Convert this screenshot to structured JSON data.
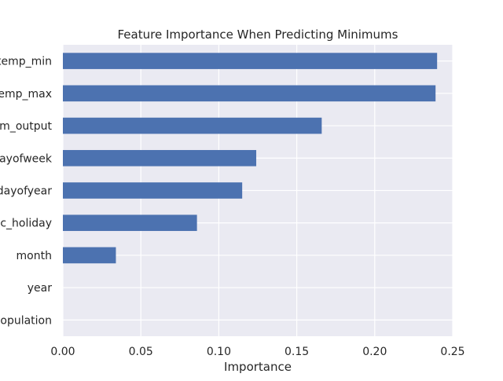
{
  "chart_data": {
    "type": "bar",
    "orientation": "horizontal",
    "title": "Feature Importance When Predicting Minimums",
    "xlabel": "Importance",
    "ylabel": "",
    "xlim": [
      0,
      0.25
    ],
    "xticks": [
      "0.00",
      "0.05",
      "0.10",
      "0.15",
      "0.20",
      "0.25"
    ],
    "categories": [
      "temp_min",
      "temp_max",
      "um_output",
      "dayofweek",
      "dayofyear",
      "ic_holiday",
      "month",
      "year",
      "population"
    ],
    "values": [
      0.24,
      0.239,
      0.166,
      0.124,
      0.115,
      0.086,
      0.034,
      0.0,
      0.0
    ],
    "bar_color": "#4c72b0",
    "plot_background": "#eaeaf2",
    "grid": true,
    "grid_color": "#ffffff"
  }
}
